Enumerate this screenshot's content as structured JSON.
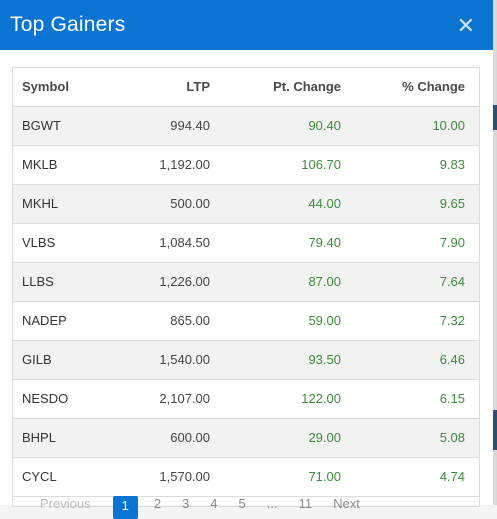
{
  "modal": {
    "title": "Top Gainers",
    "close_glyph": "✕"
  },
  "table": {
    "headers": {
      "symbol": "Symbol",
      "ltp": "LTP",
      "pt_change": "Pt. Change",
      "pct_change": "% Change"
    },
    "rows": [
      {
        "symbol": "BGWT",
        "ltp": "994.40",
        "pt": "90.40",
        "pct": "10.00"
      },
      {
        "symbol": "MKLB",
        "ltp": "1,192.00",
        "pt": "106.70",
        "pct": "9.83"
      },
      {
        "symbol": "MKHL",
        "ltp": "500.00",
        "pt": "44.00",
        "pct": "9.65"
      },
      {
        "symbol": "VLBS",
        "ltp": "1,084.50",
        "pt": "79.40",
        "pct": "7.90"
      },
      {
        "symbol": "LLBS",
        "ltp": "1,226.00",
        "pt": "87.00",
        "pct": "7.64"
      },
      {
        "symbol": "NADEP",
        "ltp": "865.00",
        "pt": "59.00",
        "pct": "7.32"
      },
      {
        "symbol": "GILB",
        "ltp": "1,540.00",
        "pt": "93.50",
        "pct": "6.46"
      },
      {
        "symbol": "NESDO",
        "ltp": "2,107.00",
        "pt": "122.00",
        "pct": "6.15"
      },
      {
        "symbol": "BHPL",
        "ltp": "600.00",
        "pt": "29.00",
        "pct": "5.08"
      },
      {
        "symbol": "CYCL",
        "ltp": "1,570.00",
        "pt": "71.00",
        "pct": "4.74"
      }
    ]
  },
  "pagination": {
    "previous": "Previous",
    "pages": [
      "1",
      "2",
      "3",
      "4",
      "5",
      "...",
      "11"
    ],
    "next": "Next",
    "current": "1"
  },
  "colors": {
    "header_bg": "#0a74d2",
    "positive": "#3d8b3d",
    "row_stripe": "#f2f2f2"
  }
}
